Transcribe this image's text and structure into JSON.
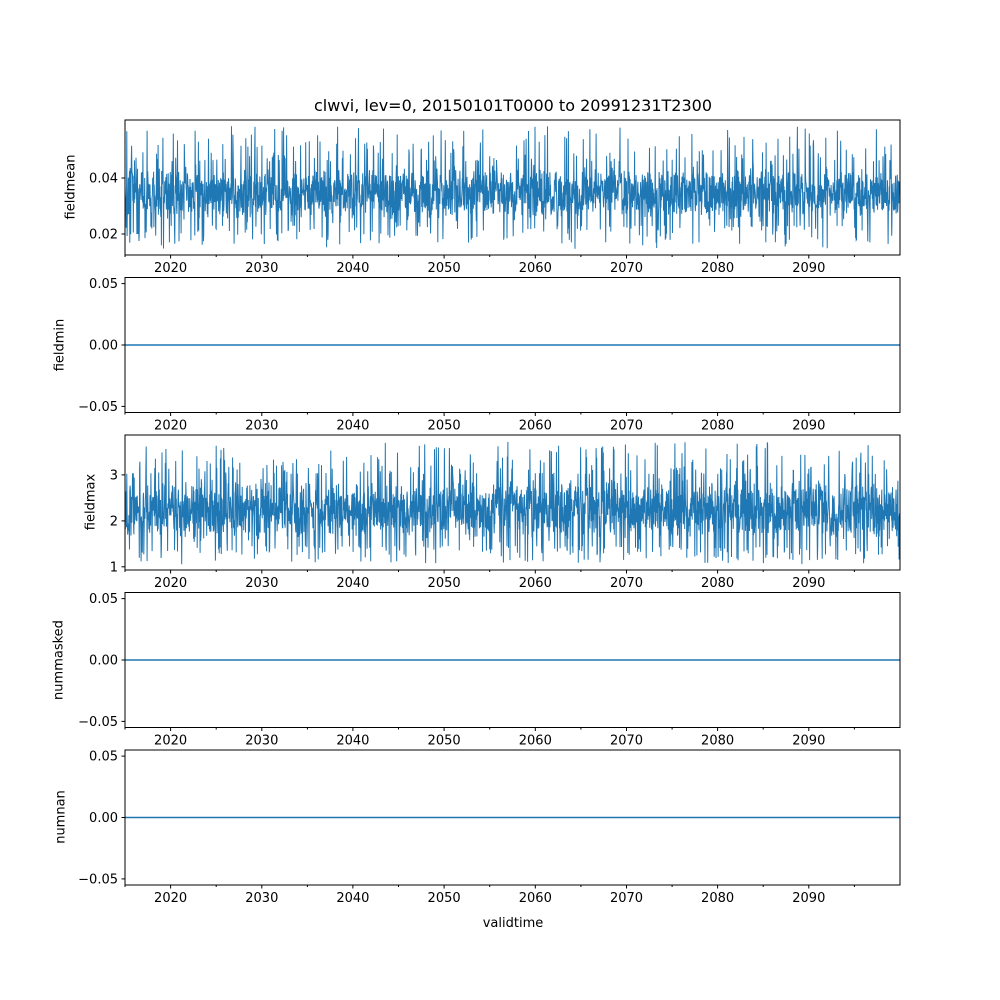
{
  "figure": {
    "title": "clwvi, lev=0, 20150101T0000 to 20991231T2300",
    "xlabel": "validtime",
    "background": "#ffffff",
    "line_color": "#1f77b4",
    "spine_color": "#000000",
    "x_axis": {
      "range": [
        2015,
        2100
      ],
      "major_ticks": [
        2020,
        2030,
        2040,
        2050,
        2060,
        2070,
        2080,
        2090
      ],
      "major_tick_labels": [
        "2020",
        "2030",
        "2040",
        "2050",
        "2060",
        "2070",
        "2080",
        "2090"
      ],
      "minor_ticks": [
        2015,
        2025,
        2035,
        2045,
        2055,
        2065,
        2075,
        2085,
        2095
      ]
    }
  },
  "chart_data": [
    {
      "type": "line",
      "ylabel": "fieldmean",
      "ylim": [
        0.0125,
        0.0607
      ],
      "yticks": [
        0.02,
        0.04
      ],
      "ytick_labels": [
        "0.02",
        "0.04"
      ],
      "color": "#1f77b4",
      "series": {
        "kind": "noise",
        "description": "high-frequency noisy signal, dense band with spikes",
        "dense_min": 0.023,
        "dense_max": 0.046,
        "spike_min": 0.0147,
        "spike_max": 0.0585,
        "spike_prob": 0.085,
        "n_points": 2600,
        "seed": 7
      }
    },
    {
      "type": "line",
      "ylabel": "fieldmin",
      "ylim": [
        -0.055,
        0.055
      ],
      "yticks": [
        -0.05,
        0.0,
        0.05
      ],
      "ytick_labels": [
        "−0.05",
        "0.00",
        "0.05"
      ],
      "color": "#1f77b4",
      "series": {
        "kind": "constant",
        "value": 0.0
      }
    },
    {
      "type": "line",
      "ylabel": "fieldmax",
      "ylim": [
        0.93,
        3.87
      ],
      "yticks": [
        1,
        2,
        3
      ],
      "ytick_labels": [
        "1",
        "2",
        "3"
      ],
      "color": "#1f77b4",
      "series": {
        "kind": "noise",
        "description": "high-frequency noisy signal, dense band with spikes",
        "dense_min": 1.45,
        "dense_max": 3.02,
        "spike_min": 1.05,
        "spike_max": 3.73,
        "spike_prob": 0.085,
        "n_points": 2600,
        "seed": 13
      }
    },
    {
      "type": "line",
      "ylabel": "nummasked",
      "ylim": [
        -0.055,
        0.055
      ],
      "yticks": [
        -0.05,
        0.0,
        0.05
      ],
      "ytick_labels": [
        "−0.05",
        "0.00",
        "0.05"
      ],
      "color": "#1f77b4",
      "series": {
        "kind": "constant",
        "value": 0.0
      }
    },
    {
      "type": "line",
      "ylabel": "numnan",
      "ylim": [
        -0.055,
        0.055
      ],
      "yticks": [
        -0.05,
        0.0,
        0.05
      ],
      "ytick_labels": [
        "−0.05",
        "0.00",
        "0.05"
      ],
      "color": "#1f77b4",
      "series": {
        "kind": "constant",
        "value": 0.0
      }
    }
  ]
}
